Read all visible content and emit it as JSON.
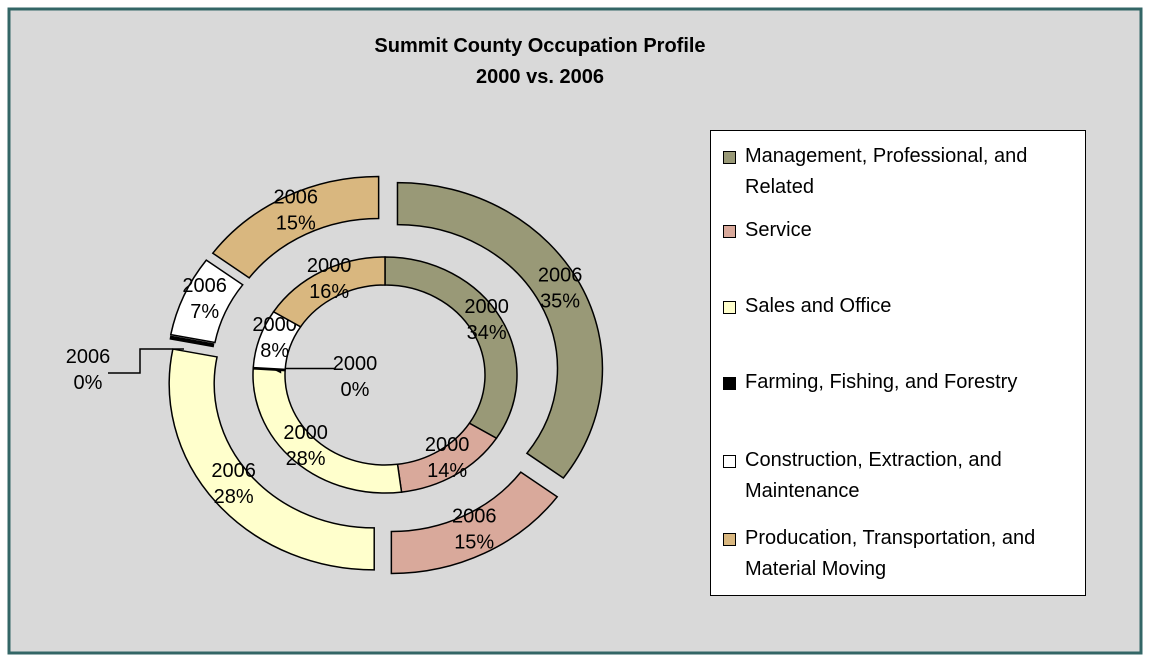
{
  "chart_data": {
    "type": "doughnut",
    "title": "Summit County Occupation Profile",
    "subtitle": "2000 vs. 2006",
    "categories": [
      "Management, Professional, and Related",
      "Service",
      "Sales and Office",
      "Farming, Fishing, and Forestry",
      "Construction, Extraction, and Maintenance",
      "Producation, Transportation, and Material Moving"
    ],
    "colors": [
      "#999977",
      "#d9a99b",
      "#ffffcc",
      "#000000",
      "#ffffff",
      "#d9b77f"
    ],
    "series": [
      {
        "name": "2000",
        "values": [
          34,
          14,
          28,
          0,
          8,
          16
        ],
        "value_labels": [
          "34%",
          "14%",
          "28%",
          "0%",
          "8%",
          "16%"
        ]
      },
      {
        "name": "2006",
        "values": [
          35,
          15,
          28,
          0,
          7,
          15
        ],
        "value_labels": [
          "35%",
          "15%",
          "28%",
          "0%",
          "7%",
          "15%"
        ]
      }
    ],
    "legend": "right"
  }
}
